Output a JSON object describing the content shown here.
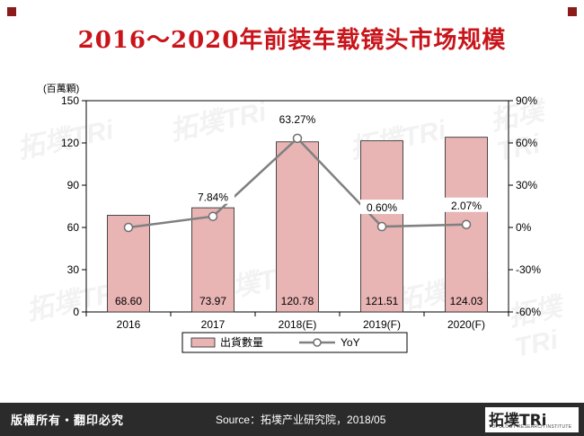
{
  "title": "2016～2020年前装车载镜头市场规模",
  "footer": {
    "copyright": "版權所有・翻印必究",
    "source": "Source：拓墣产业研究院，2018/05",
    "logo_text": "拓墣TRi",
    "logo_sub": "TOPOLOGY RESEARCH INSTITUTE"
  },
  "watermark_text": "拓墣TRi",
  "chart_data": {
    "type": "bar",
    "categories": [
      "2016",
      "2017",
      "2018(E)",
      "2019(F)",
      "2020(F)"
    ],
    "series": [
      {
        "name": "出貨數量",
        "type": "bar",
        "axis": "left",
        "values": [
          68.6,
          73.97,
          120.78,
          121.51,
          124.03
        ],
        "labels": [
          "68.60",
          "73.97",
          "120.78",
          "121.51",
          "124.03"
        ],
        "color": "#e8b4b4"
      },
      {
        "name": "YoY",
        "type": "line",
        "axis": "right",
        "values": [
          0.0,
          7.84,
          63.27,
          0.6,
          2.07
        ],
        "labels": [
          "",
          "7.84%",
          "63.27%",
          "0.60%",
          "2.07%"
        ],
        "color": "#808080"
      }
    ],
    "left_axis": {
      "unit_label": "(百萬顆)",
      "ylim": [
        0,
        150
      ],
      "ticks": [
        0,
        30,
        60,
        90,
        120,
        150
      ],
      "tick_labels": [
        "0",
        "30",
        "60",
        "90",
        "120",
        "150"
      ]
    },
    "right_axis": {
      "ylim": [
        -60,
        90
      ],
      "ticks": [
        -60,
        -30,
        0,
        30,
        60,
        90
      ],
      "tick_labels": [
        "-60%",
        "-30%",
        "0%",
        "30%",
        "60%",
        "90%"
      ]
    },
    "legend_placement": "bottom",
    "grid": false
  }
}
